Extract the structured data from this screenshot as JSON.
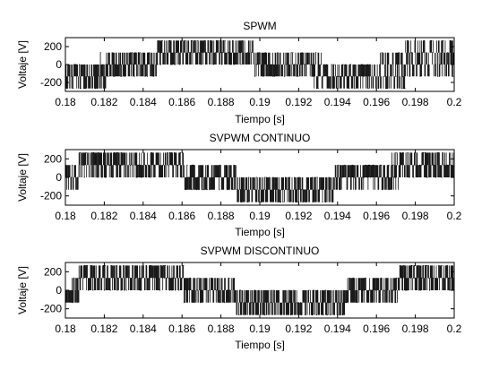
{
  "figure": {
    "background": "#ffffff",
    "line_color": "#000000"
  },
  "chart_data": [
    {
      "type": "line",
      "title": "SPWM",
      "xlabel": "Tiempo [s]",
      "ylabel": "Voltaje [V]",
      "xlim": [
        0.18,
        0.2
      ],
      "ylim": [
        -300,
        300
      ],
      "xticks": [
        0.18,
        0.182,
        0.184,
        0.186,
        0.188,
        0.19,
        0.192,
        0.194,
        0.196,
        0.198,
        0.2
      ],
      "xtick_labels": [
        "0.18",
        "0.182",
        "0.184",
        "0.186",
        "0.188",
        "0.19",
        "0.192",
        "0.194",
        "0.196",
        "0.198",
        "0.2"
      ],
      "yticks": [
        -200,
        0,
        200
      ],
      "ytick_labels": [
        "-200",
        "0",
        "200"
      ],
      "grid": false,
      "series": [
        {
          "waveform": "pwm",
          "levels": [
            -267,
            -133,
            0,
            133,
            267
          ],
          "segments": [
            {
              "x0": 0.18,
              "x1": 0.1818,
              "min": -267,
              "max": 0
            },
            {
              "x0": 0.1818,
              "x1": 0.1822,
              "min": -267,
              "max": 133
            },
            {
              "x0": 0.1822,
              "x1": 0.1828,
              "min": -133,
              "max": 133
            },
            {
              "x0": 0.1828,
              "x1": 0.1847,
              "min": -133,
              "max": 133
            },
            {
              "x0": 0.1847,
              "x1": 0.1882,
              "min": 0,
              "max": 267
            },
            {
              "x0": 0.1882,
              "x1": 0.1897,
              "min": 0,
              "max": 267
            },
            {
              "x0": 0.1897,
              "x1": 0.1902,
              "min": -133,
              "max": 133
            },
            {
              "x0": 0.1902,
              "x1": 0.1928,
              "min": -133,
              "max": 133
            },
            {
              "x0": 0.1928,
              "x1": 0.1933,
              "min": -267,
              "max": 133
            },
            {
              "x0": 0.1933,
              "x1": 0.1962,
              "min": -267,
              "max": 0
            },
            {
              "x0": 0.1962,
              "x1": 0.1975,
              "min": -267,
              "max": 133
            },
            {
              "x0": 0.1975,
              "x1": 0.2,
              "min": -133,
              "max": 267
            }
          ]
        }
      ]
    },
    {
      "type": "line",
      "title": "SVPWM CONTINUO",
      "xlabel": "Tiempo [s]",
      "ylabel": "Voltaje [V]",
      "xlim": [
        0.18,
        0.2
      ],
      "ylim": [
        -300,
        300
      ],
      "xticks": [
        0.18,
        0.182,
        0.184,
        0.186,
        0.188,
        0.19,
        0.192,
        0.194,
        0.196,
        0.198,
        0.2
      ],
      "xtick_labels": [
        "0.18",
        "0.182",
        "0.184",
        "0.186",
        "0.188",
        "0.19",
        "0.192",
        "0.194",
        "0.196",
        "0.198",
        "0.2"
      ],
      "yticks": [
        -200,
        0,
        200
      ],
      "ytick_labels": [
        "-200",
        "0",
        "200"
      ],
      "grid": false,
      "series": [
        {
          "waveform": "pwm",
          "levels": [
            -267,
            -133,
            0,
            133,
            267
          ],
          "segments": [
            {
              "x0": 0.18,
              "x1": 0.1803,
              "min": -133,
              "max": 133
            },
            {
              "x0": 0.1803,
              "x1": 0.1807,
              "min": -133,
              "max": 133
            },
            {
              "x0": 0.1807,
              "x1": 0.1861,
              "min": 0,
              "max": 267
            },
            {
              "x0": 0.1861,
              "x1": 0.1865,
              "min": -133,
              "max": 133
            },
            {
              "x0": 0.1865,
              "x1": 0.1883,
              "min": -133,
              "max": 133
            },
            {
              "x0": 0.1883,
              "x1": 0.1888,
              "min": -133,
              "max": 133
            },
            {
              "x0": 0.1888,
              "x1": 0.1938,
              "min": -267,
              "max": 0
            },
            {
              "x0": 0.1938,
              "x1": 0.1942,
              "min": -133,
              "max": 133
            },
            {
              "x0": 0.1942,
              "x1": 0.1968,
              "min": -133,
              "max": 133
            },
            {
              "x0": 0.1968,
              "x1": 0.1972,
              "min": -133,
              "max": 267
            },
            {
              "x0": 0.1972,
              "x1": 0.2,
              "min": 0,
              "max": 267
            }
          ]
        }
      ]
    },
    {
      "type": "line",
      "title": "SVPWM DISCONTINUO",
      "xlabel": "Tiempo [s]",
      "ylabel": "Voltaje [V]",
      "xlim": [
        0.18,
        0.2
      ],
      "ylim": [
        -300,
        300
      ],
      "xticks": [
        0.18,
        0.182,
        0.184,
        0.186,
        0.188,
        0.19,
        0.192,
        0.194,
        0.196,
        0.198,
        0.2
      ],
      "xtick_labels": [
        "0.18",
        "0.182",
        "0.184",
        "0.186",
        "0.188",
        "0.19",
        "0.192",
        "0.194",
        "0.196",
        "0.198",
        "0.2"
      ],
      "yticks": [
        -200,
        0,
        200
      ],
      "ytick_labels": [
        "-200",
        "0",
        "200"
      ],
      "grid": false,
      "series": [
        {
          "waveform": "pwm",
          "levels": [
            -267,
            -133,
            0,
            133,
            267
          ],
          "segments": [
            {
              "x0": 0.18,
              "x1": 0.1803,
              "min": -133,
              "max": 0
            },
            {
              "x0": 0.1803,
              "x1": 0.1807,
              "min": -133,
              "max": 133
            },
            {
              "x0": 0.1807,
              "x1": 0.1861,
              "min": 0,
              "max": 267
            },
            {
              "x0": 0.1861,
              "x1": 0.1865,
              "min": -133,
              "max": 133
            },
            {
              "x0": 0.1865,
              "x1": 0.1888,
              "min": -133,
              "max": 133
            },
            {
              "x0": 0.1888,
              "x1": 0.1944,
              "min": -267,
              "max": 0
            },
            {
              "x0": 0.1944,
              "x1": 0.1966,
              "min": -133,
              "max": 133
            },
            {
              "x0": 0.1966,
              "x1": 0.1972,
              "min": -133,
              "max": 133
            },
            {
              "x0": 0.1972,
              "x1": 0.2,
              "min": 0,
              "max": 267
            }
          ]
        }
      ]
    }
  ]
}
